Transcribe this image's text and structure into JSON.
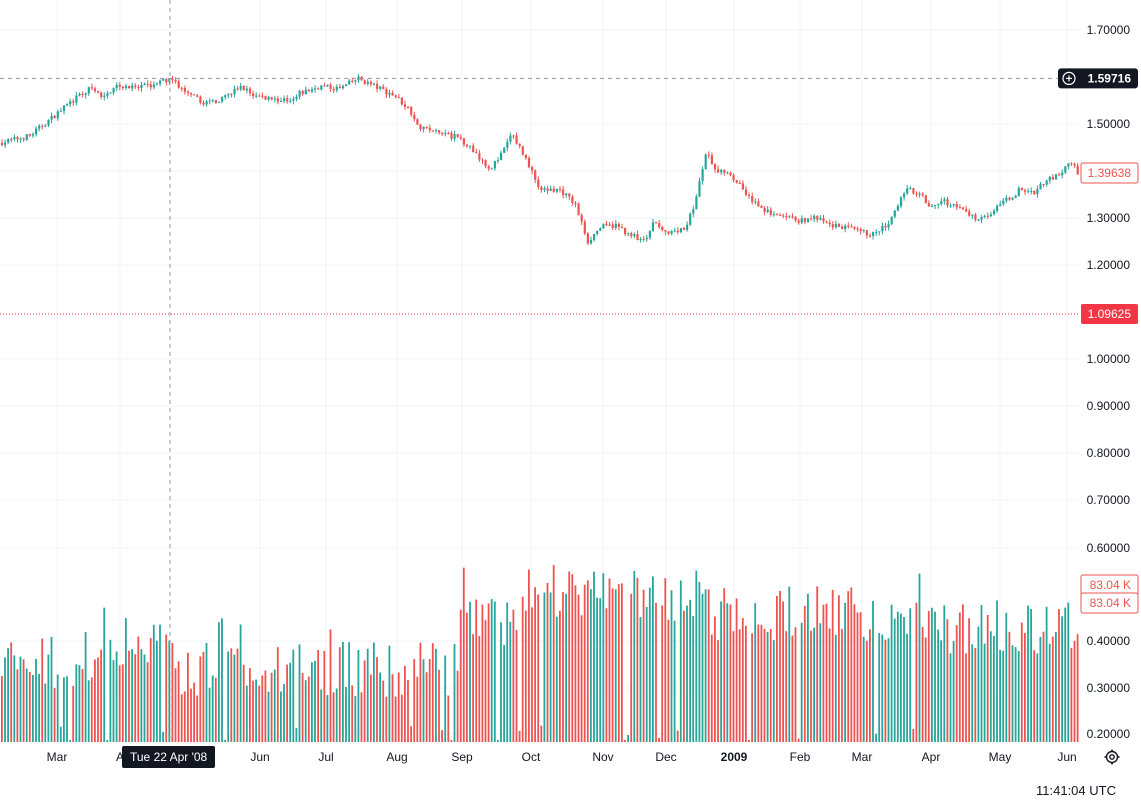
{
  "chart_data": {
    "type": "candlestick",
    "instrument_scale": "log",
    "y_axis_ticks": [
      "1.70000",
      "1.50000",
      "1.40000",
      "1.30000",
      "1.20000",
      "1.00000",
      "0.90000",
      "0.80000",
      "0.70000",
      "0.60000",
      "0.40000",
      "0.30000",
      "0.20000"
    ],
    "y_tick_values": [
      1.7,
      1.5,
      1.4,
      1.3,
      1.2,
      1.0,
      0.9,
      0.8,
      0.7,
      0.6,
      0.4,
      0.3,
      0.2
    ],
    "x_axis_ticks": [
      "Mar",
      "A",
      "Jun",
      "Jul",
      "Aug",
      "Sep",
      "Oct",
      "Nov",
      "Dec",
      "2009",
      "Feb",
      "Mar",
      "Apr",
      "May",
      "Jun"
    ],
    "x_axis_bold": [
      "2009"
    ],
    "price_tags": {
      "crosshair_price": "1.59716",
      "last_price": "1.39638",
      "red_line_price": "1.09625",
      "volume_tag_1": "83.04 K",
      "volume_tag_2": "83.04 K"
    },
    "crosshair_date": "Tue 22 Apr '08",
    "grid": true,
    "price_path": [
      {
        "x": 0,
        "close": 1.46
      },
      {
        "x": 30,
        "close": 1.475
      },
      {
        "x": 50,
        "close": 1.51
      },
      {
        "x": 70,
        "close": 1.545
      },
      {
        "x": 90,
        "close": 1.575
      },
      {
        "x": 105,
        "close": 1.555
      },
      {
        "x": 115,
        "close": 1.585
      },
      {
        "x": 135,
        "close": 1.575
      },
      {
        "x": 155,
        "close": 1.585
      },
      {
        "x": 172,
        "close": 1.597
      },
      {
        "x": 185,
        "close": 1.565
      },
      {
        "x": 205,
        "close": 1.545
      },
      {
        "x": 225,
        "close": 1.555
      },
      {
        "x": 240,
        "close": 1.58
      },
      {
        "x": 255,
        "close": 1.56
      },
      {
        "x": 270,
        "close": 1.555
      },
      {
        "x": 285,
        "close": 1.55
      },
      {
        "x": 300,
        "close": 1.565
      },
      {
        "x": 320,
        "close": 1.58
      },
      {
        "x": 340,
        "close": 1.575
      },
      {
        "x": 358,
        "close": 1.597
      },
      {
        "x": 375,
        "close": 1.58
      },
      {
        "x": 395,
        "close": 1.56
      },
      {
        "x": 410,
        "close": 1.53
      },
      {
        "x": 420,
        "close": 1.495
      },
      {
        "x": 440,
        "close": 1.48
      },
      {
        "x": 460,
        "close": 1.47
      },
      {
        "x": 475,
        "close": 1.44
      },
      {
        "x": 490,
        "close": 1.405
      },
      {
        "x": 500,
        "close": 1.43
      },
      {
        "x": 512,
        "close": 1.48
      },
      {
        "x": 525,
        "close": 1.43
      },
      {
        "x": 540,
        "close": 1.36
      },
      {
        "x": 560,
        "close": 1.36
      },
      {
        "x": 575,
        "close": 1.33
      },
      {
        "x": 588,
        "close": 1.25
      },
      {
        "x": 600,
        "close": 1.28
      },
      {
        "x": 615,
        "close": 1.285
      },
      {
        "x": 630,
        "close": 1.265
      },
      {
        "x": 645,
        "close": 1.25
      },
      {
        "x": 655,
        "close": 1.295
      },
      {
        "x": 670,
        "close": 1.265
      },
      {
        "x": 685,
        "close": 1.28
      },
      {
        "x": 695,
        "close": 1.33
      },
      {
        "x": 706,
        "close": 1.44
      },
      {
        "x": 715,
        "close": 1.4
      },
      {
        "x": 728,
        "close": 1.4
      },
      {
        "x": 740,
        "close": 1.37
      },
      {
        "x": 755,
        "close": 1.33
      },
      {
        "x": 770,
        "close": 1.31
      },
      {
        "x": 785,
        "close": 1.3
      },
      {
        "x": 800,
        "close": 1.295
      },
      {
        "x": 815,
        "close": 1.3
      },
      {
        "x": 830,
        "close": 1.285
      },
      {
        "x": 845,
        "close": 1.28
      },
      {
        "x": 860,
        "close": 1.27
      },
      {
        "x": 875,
        "close": 1.265
      },
      {
        "x": 890,
        "close": 1.29
      },
      {
        "x": 905,
        "close": 1.36
      },
      {
        "x": 920,
        "close": 1.355
      },
      {
        "x": 930,
        "close": 1.325
      },
      {
        "x": 945,
        "close": 1.335
      },
      {
        "x": 960,
        "close": 1.32
      },
      {
        "x": 975,
        "close": 1.3
      },
      {
        "x": 990,
        "close": 1.31
      },
      {
        "x": 1005,
        "close": 1.335
      },
      {
        "x": 1020,
        "close": 1.36
      },
      {
        "x": 1035,
        "close": 1.355
      },
      {
        "x": 1045,
        "close": 1.38
      },
      {
        "x": 1060,
        "close": 1.39
      },
      {
        "x": 1070,
        "close": 1.42
      },
      {
        "x": 1078,
        "close": 1.396
      }
    ]
  },
  "status_bar": {
    "time": "11:41:04 UTC"
  },
  "colors": {
    "up": "#26a69a",
    "down": "#ef5350",
    "grid": "#f0f3fa",
    "axis_text": "#131722",
    "tag_dark": "#131722",
    "red_line": "#f23645"
  },
  "icons": {
    "settings": "settings-icon",
    "crosshair_add": "plus-circle-icon"
  }
}
